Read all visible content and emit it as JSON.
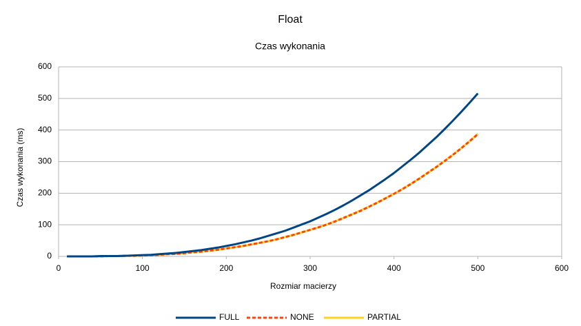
{
  "chart_data": {
    "type": "line",
    "title": "Float",
    "subtitle": "Czas wykonania",
    "xlabel": "Rozmiar macierzy",
    "ylabel": "Czas wykonania (ms)",
    "x": [
      10,
      20,
      30,
      40,
      50,
      60,
      70,
      80,
      90,
      100,
      110,
      120,
      130,
      140,
      150,
      160,
      170,
      180,
      190,
      200,
      210,
      220,
      230,
      240,
      250,
      260,
      270,
      280,
      290,
      300,
      310,
      320,
      330,
      340,
      350,
      360,
      370,
      380,
      390,
      400,
      410,
      420,
      430,
      440,
      450,
      460,
      470,
      480,
      490,
      500
    ],
    "series": [
      {
        "name": "FULL",
        "color": "#004586",
        "dashed": false,
        "values": [
          0,
          0,
          0,
          0,
          1,
          1,
          1,
          2,
          3,
          4,
          5,
          7,
          9,
          11,
          14,
          17,
          20,
          24,
          28,
          33,
          38,
          44,
          50,
          57,
          65,
          73,
          81,
          91,
          101,
          111,
          123,
          135,
          148,
          162,
          177,
          193,
          209,
          227,
          245,
          264,
          285,
          306,
          328,
          352,
          376,
          402,
          429,
          457,
          486,
          516
        ]
      },
      {
        "name": "NONE",
        "color": "#ff420e",
        "dashed": true,
        "values": [
          0,
          0,
          0,
          0,
          0,
          1,
          1,
          2,
          2,
          3,
          4,
          5,
          7,
          8,
          10,
          13,
          15,
          18,
          21,
          25,
          29,
          33,
          38,
          43,
          48,
          54,
          61,
          68,
          76,
          84,
          92,
          101,
          111,
          122,
          133,
          144,
          157,
          170,
          184,
          198,
          213,
          229,
          246,
          264,
          282,
          301,
          321,
          342,
          364,
          387
        ]
      },
      {
        "name": "PARTIAL",
        "color": "#ffd320",
        "dashed": false,
        "values": [
          0,
          0,
          0,
          0,
          0,
          1,
          1,
          2,
          2,
          3,
          4,
          5,
          7,
          8,
          10,
          13,
          15,
          18,
          21,
          25,
          29,
          33,
          38,
          43,
          48,
          54,
          61,
          68,
          76,
          84,
          92,
          101,
          111,
          122,
          133,
          145,
          157,
          170,
          184,
          198,
          213,
          229,
          246,
          264,
          282,
          301,
          321,
          342,
          364,
          388
        ]
      }
    ],
    "xlim": [
      0,
      600
    ],
    "xticks": [
      0,
      100,
      200,
      300,
      400,
      500,
      600
    ],
    "ylim": [
      0,
      600
    ],
    "yticks": [
      0,
      100,
      200,
      300,
      400,
      500,
      600
    ],
    "grid": true,
    "legend": "bottom"
  }
}
